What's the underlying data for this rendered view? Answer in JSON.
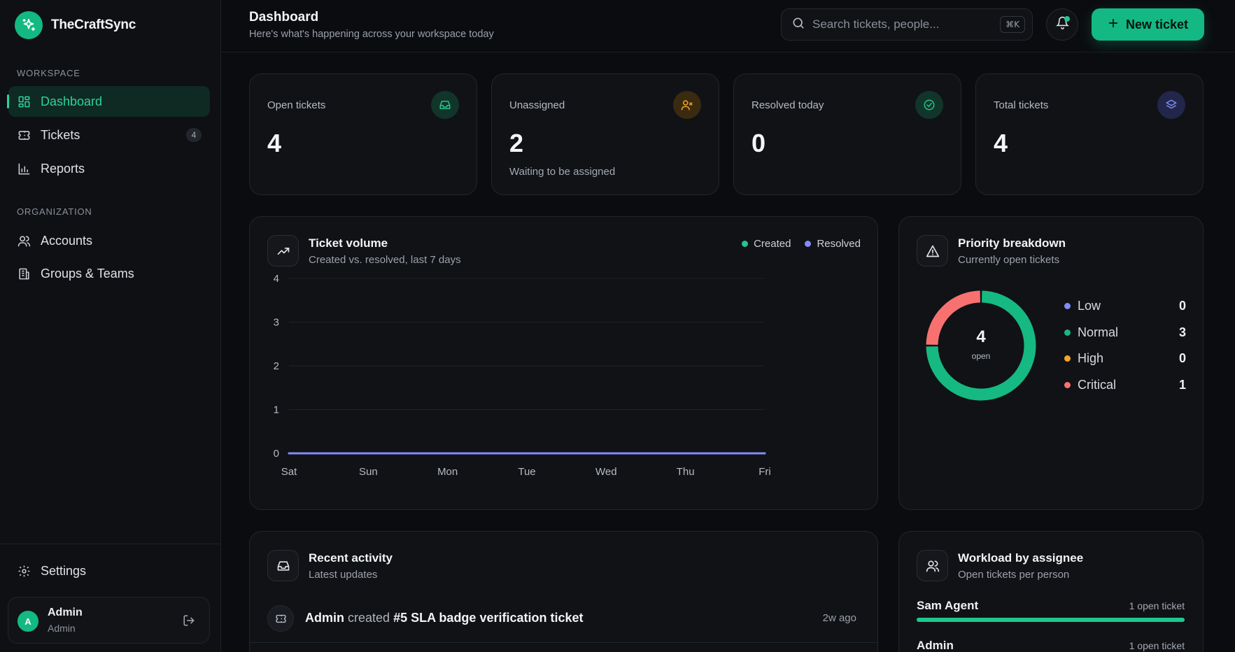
{
  "brand": {
    "name": "TheCraftSync"
  },
  "sidebar": {
    "workspace_label": "WORKSPACE",
    "organization_label": "ORGANIZATION",
    "items": [
      {
        "label": "Dashboard",
        "icon": "grid-icon"
      },
      {
        "label": "Tickets",
        "icon": "ticket-icon",
        "badge": "4"
      },
      {
        "label": "Reports",
        "icon": "bar-chart-icon"
      },
      {
        "label": "Accounts",
        "icon": "users-icon"
      },
      {
        "label": "Groups & Teams",
        "icon": "building-icon"
      }
    ],
    "settings_label": "Settings",
    "user": {
      "initial": "A",
      "name": "Admin",
      "role": "Admin"
    }
  },
  "header": {
    "title": "Dashboard",
    "subtitle": "Here's what's happening across your workspace today",
    "search_placeholder": "Search tickets, people...",
    "search_shortcut": "⌘K",
    "new_ticket_label": "New ticket"
  },
  "stats": [
    {
      "label": "Open tickets",
      "value": "4",
      "note": "",
      "icon": "inbox-icon",
      "color": "#22c58b"
    },
    {
      "label": "Unassigned",
      "value": "2",
      "note": "Waiting to be assigned",
      "icon": "user-x-icon",
      "color": "#f5a524"
    },
    {
      "label": "Resolved today",
      "value": "0",
      "note": "",
      "icon": "check-circle-icon",
      "color": "#22c58b"
    },
    {
      "label": "Total tickets",
      "value": "4",
      "note": "",
      "icon": "layers-icon",
      "color": "#818cf8"
    }
  ],
  "volume": {
    "title": "Ticket volume",
    "subtitle": "Created vs. resolved, last 7 days",
    "chart_data": {
      "type": "line",
      "categories": [
        "Sat",
        "Sun",
        "Mon",
        "Tue",
        "Wed",
        "Thu",
        "Fri"
      ],
      "series": [
        {
          "name": "Created",
          "values": [
            0,
            0,
            0,
            0,
            0,
            0,
            0
          ],
          "color": "#22c58b"
        },
        {
          "name": "Resolved",
          "values": [
            0,
            0,
            0,
            0,
            0,
            0,
            0
          ],
          "color": "#818cf8"
        }
      ],
      "yticks": [
        0,
        1,
        2,
        3,
        4
      ],
      "ylim": [
        0,
        4
      ],
      "grid": true,
      "legend": "top-right"
    }
  },
  "priority": {
    "title": "Priority breakdown",
    "subtitle": "Currently open tickets",
    "total": "4",
    "total_label": "open",
    "chart_data": {
      "type": "pie",
      "categories": [
        "Low",
        "Normal",
        "High",
        "Critical"
      ],
      "values": [
        0,
        3,
        0,
        1
      ],
      "colors": [
        "#818cf8",
        "#16b981",
        "#f5a524",
        "#f87171"
      ],
      "legend": "right"
    }
  },
  "activity": {
    "title": "Recent activity",
    "subtitle": "Latest updates",
    "items": [
      {
        "actor": "Admin",
        "action": "created",
        "target": "#5 SLA badge verification ticket",
        "time": "2w ago"
      }
    ]
  },
  "workload": {
    "title": "Workload by assignee",
    "subtitle": "Open tickets per person",
    "items": [
      {
        "name": "Sam Agent",
        "count": "1 open ticket",
        "fraction": 1.0
      },
      {
        "name": "Admin",
        "count": "1 open ticket",
        "fraction": 1.0
      }
    ]
  }
}
